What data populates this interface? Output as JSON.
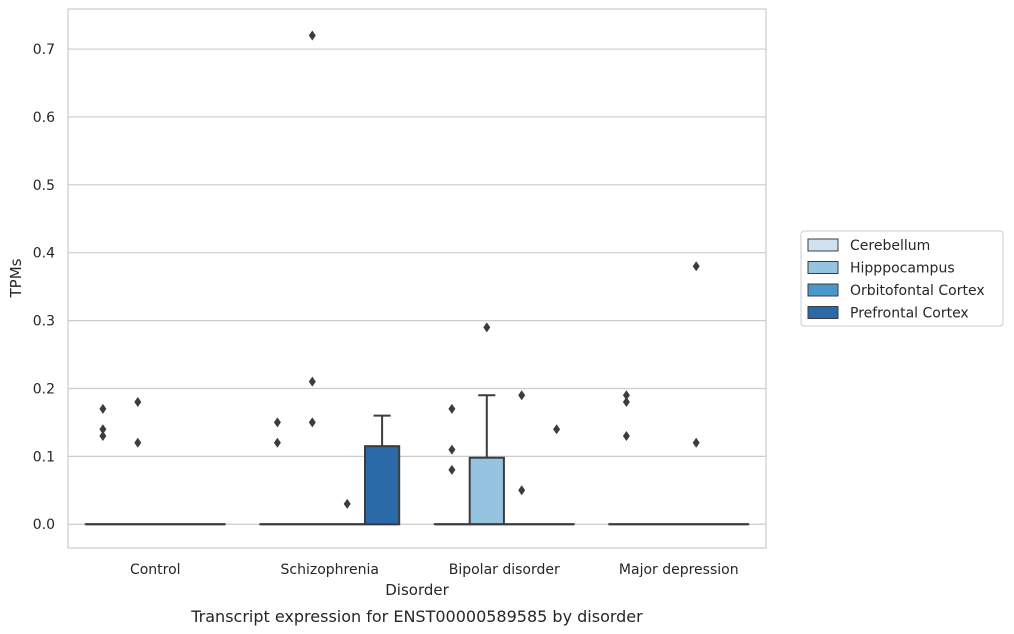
{
  "caption": "Transcript expression for ENST00000589585 by disorder",
  "chart_data": {
    "type": "box",
    "title": "",
    "xlabel": "Disorder",
    "ylabel": "TPMs",
    "ylim": [
      -0.035,
      0.759
    ],
    "yticks": [
      0.0,
      0.1,
      0.2,
      0.3,
      0.4,
      0.5,
      0.6,
      0.7
    ],
    "ytick_labels": [
      "0.0",
      "0.1",
      "0.2",
      "0.3",
      "0.4",
      "0.5",
      "0.6",
      "0.7"
    ],
    "grid": "horizontal",
    "legend_position": "center-right",
    "categories": [
      "Control",
      "Schizophrenia",
      "Bipolar disorder",
      "Major depression"
    ],
    "series": [
      {
        "name": "Cerebellum",
        "color": "#d0e1f2",
        "boxes": [
          {
            "q1": 0.0,
            "median": 0.0,
            "q3": 0.0,
            "whisker_low": 0.0,
            "whisker_high": 0.0,
            "outliers": [
              0.13,
              0.14,
              0.17
            ]
          },
          {
            "q1": 0.0,
            "median": 0.0,
            "q3": 0.0,
            "whisker_low": 0.0,
            "whisker_high": 0.0,
            "outliers": [
              0.12,
              0.15
            ]
          },
          {
            "q1": 0.0,
            "median": 0.0,
            "q3": 0.0,
            "whisker_low": 0.0,
            "whisker_high": 0.0,
            "outliers": [
              0.08,
              0.11,
              0.17
            ]
          },
          {
            "q1": 0.0,
            "median": 0.0,
            "q3": 0.0,
            "whisker_low": 0.0,
            "whisker_high": 0.0,
            "outliers": [
              0.13,
              0.18,
              0.19
            ]
          }
        ]
      },
      {
        "name": "Hipppocampus",
        "color": "#94c4df",
        "boxes": [
          {
            "q1": 0.0,
            "median": 0.0,
            "q3": 0.0,
            "whisker_low": 0.0,
            "whisker_high": 0.0,
            "outliers": [
              0.12,
              0.18
            ]
          },
          {
            "q1": 0.0,
            "median": 0.0,
            "q3": 0.0,
            "whisker_low": 0.0,
            "whisker_high": 0.0,
            "outliers": [
              0.15,
              0.21,
              0.72
            ]
          },
          {
            "q1": 0.0,
            "median": 0.0,
            "q3": 0.098,
            "whisker_low": 0.0,
            "whisker_high": 0.19,
            "outliers": [
              0.29
            ]
          },
          {
            "q1": 0.0,
            "median": 0.0,
            "q3": 0.0,
            "whisker_low": 0.0,
            "whisker_high": 0.0,
            "outliers": []
          }
        ]
      },
      {
        "name": "Orbitofontal Cortex",
        "color": "#4a98c9",
        "boxes": [
          {
            "q1": 0.0,
            "median": 0.0,
            "q3": 0.0,
            "whisker_low": 0.0,
            "whisker_high": 0.0,
            "outliers": []
          },
          {
            "q1": 0.0,
            "median": 0.0,
            "q3": 0.0,
            "whisker_low": 0.0,
            "whisker_high": 0.0,
            "outliers": [
              0.03
            ]
          },
          {
            "q1": 0.0,
            "median": 0.0,
            "q3": 0.0,
            "whisker_low": 0.0,
            "whisker_high": 0.0,
            "outliers": [
              0.05,
              0.19
            ]
          },
          {
            "q1": 0.0,
            "median": 0.0,
            "q3": 0.0,
            "whisker_low": 0.0,
            "whisker_high": 0.0,
            "outliers": [
              0.12,
              0.38
            ]
          }
        ]
      },
      {
        "name": "Prefrontal Cortex",
        "color": "#2b6aa9",
        "boxes": [
          {
            "q1": 0.0,
            "median": 0.0,
            "q3": 0.0,
            "whisker_low": 0.0,
            "whisker_high": 0.0,
            "outliers": []
          },
          {
            "q1": 0.0,
            "median": 0.0,
            "q3": 0.115,
            "whisker_low": 0.0,
            "whisker_high": 0.16,
            "outliers": []
          },
          {
            "q1": 0.0,
            "median": 0.0,
            "q3": 0.0,
            "whisker_low": 0.0,
            "whisker_high": 0.0,
            "outliers": [
              0.14
            ]
          },
          {
            "q1": 0.0,
            "median": 0.0,
            "q3": 0.0,
            "whisker_low": 0.0,
            "whisker_high": 0.0,
            "outliers": []
          }
        ]
      }
    ]
  }
}
